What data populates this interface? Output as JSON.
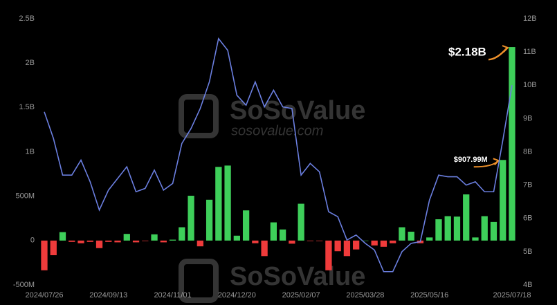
{
  "chart_data": {
    "type": "bar-line",
    "categories": [
      "2024/07/26",
      null,
      null,
      null,
      null,
      null,
      null,
      "2024/09/13",
      null,
      null,
      null,
      null,
      null,
      null,
      "2024/11/01",
      null,
      null,
      null,
      null,
      null,
      null,
      "2024/12/20",
      null,
      null,
      null,
      null,
      null,
      null,
      "2025/02/07",
      null,
      null,
      null,
      null,
      null,
      null,
      "2025/03/28",
      null,
      null,
      null,
      null,
      null,
      null,
      "2025/05/16",
      null,
      null,
      null,
      null,
      null,
      null,
      null,
      null,
      "2025/07/18"
    ],
    "series": [
      {
        "type": "bar",
        "positive_color": "#3ecf5a",
        "negative_color": "#ef3b3b",
        "values": [
          -335000000,
          -165000000,
          95000000,
          -15000000,
          -30000000,
          -15000000,
          -85000000,
          -15000000,
          -20000000,
          75000000,
          -20000000,
          -5000000,
          70000000,
          -20000000,
          10000000,
          150000000,
          505000000,
          -65000000,
          460000000,
          830000000,
          845000000,
          55000000,
          340000000,
          -30000000,
          -175000000,
          205000000,
          125000000,
          -35000000,
          415000000,
          -5000000,
          -5000000,
          -335000000,
          -120000000,
          -175000000,
          -100000000,
          0,
          -55000000,
          -70000000,
          -30000000,
          150000000,
          100000000,
          -30000000,
          35000000,
          240000000,
          275000000,
          270000000,
          520000000,
          35000000,
          275000000,
          210000000,
          907990000,
          2180000000
        ],
        "value_labels": [
          null,
          null,
          null,
          null,
          null,
          null,
          null,
          null,
          null,
          null,
          null,
          null,
          null,
          null,
          null,
          null,
          null,
          null,
          null,
          null,
          null,
          null,
          null,
          null,
          null,
          null,
          null,
          null,
          null,
          null,
          null,
          null,
          null,
          null,
          null,
          null,
          null,
          null,
          null,
          null,
          null,
          null,
          null,
          null,
          null,
          null,
          null,
          null,
          null,
          null,
          "$907.99M",
          "$2.18B"
        ]
      },
      {
        "type": "line",
        "axis": "y2",
        "color": "#6b7fe0",
        "values": [
          9200000000,
          8400000000,
          7300000000,
          7300000000,
          7750000000,
          7100000000,
          6250000000,
          6850000000,
          7200000000,
          7550000000,
          6800000000,
          6900000000,
          7450000000,
          6850000000,
          7050000000,
          8250000000,
          8700000000,
          9300000000,
          10100000000,
          11400000000,
          11050000000,
          9700000000,
          9400000000,
          10100000000,
          9350000000,
          9850000000,
          9350000000,
          9300000000,
          7300000000,
          7650000000,
          7400000000,
          6200000000,
          6050000000,
          5350000000,
          5500000000,
          5250000000,
          5050000000,
          4400000000,
          4400000000,
          5000000000,
          5250000000,
          5300000000,
          6550000000,
          7300000000,
          7250000000,
          7250000000,
          7000000000,
          7100000000,
          6800000000,
          6800000000,
          8350000000,
          10000000000
        ]
      }
    ],
    "ylim": [
      -500000000,
      2500000000
    ],
    "yticks": [
      {
        "value": -500000000,
        "label": "-500M"
      },
      0,
      {
        "value": 500000000,
        "label": "500M"
      },
      {
        "value": 1000000000,
        "label": "1B"
      },
      {
        "value": 1500000000,
        "label": "1.5B"
      },
      {
        "value": 2000000000,
        "label": "2B"
      },
      {
        "value": 2500000000,
        "label": "2.5B"
      }
    ],
    "y2lim": [
      4000000000,
      12000000000
    ],
    "y2ticks": [
      {
        "value": 4000000000,
        "label": "4B"
      },
      {
        "value": 5000000000,
        "label": "5B"
      },
      {
        "value": 6000000000,
        "label": "6B"
      },
      {
        "value": 7000000000,
        "label": "7B"
      },
      {
        "value": 8000000000,
        "label": "8B"
      },
      {
        "value": 9000000000,
        "label": "9B"
      },
      {
        "value": 10000000000,
        "label": "10B"
      },
      {
        "value": 11000000000,
        "label": "11B"
      },
      {
        "value": 12000000000,
        "label": "12B"
      }
    ],
    "watermark": [
      "SoSoValue",
      "sosovalue.com"
    ]
  }
}
